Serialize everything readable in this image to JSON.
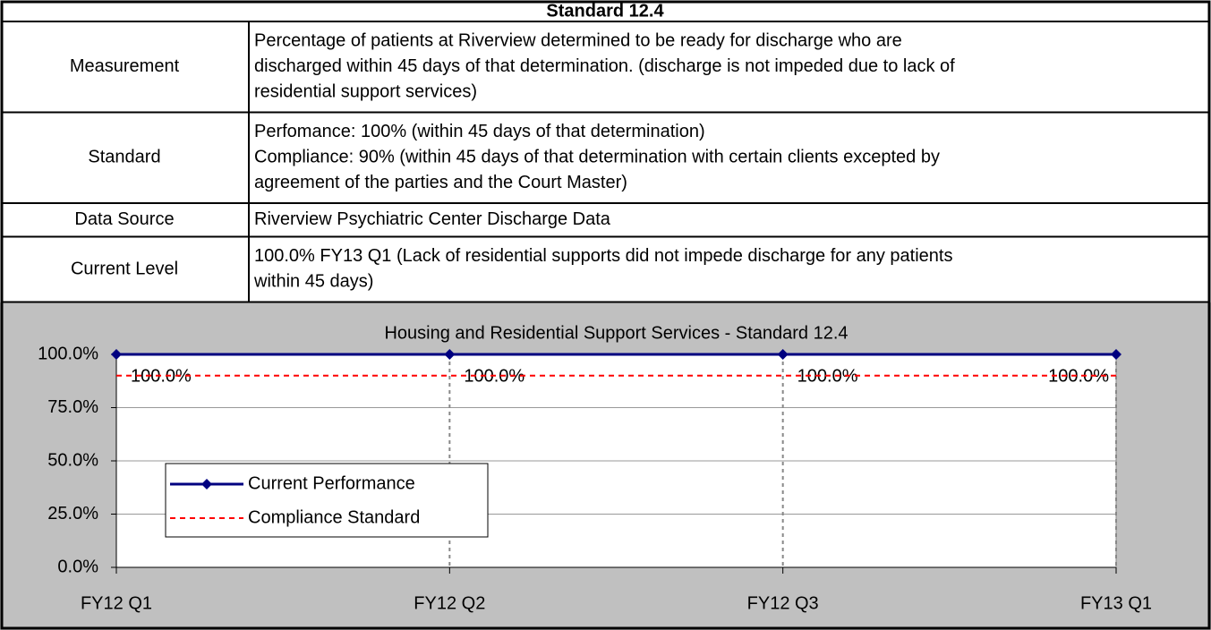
{
  "table": {
    "title": "Standard 12.4",
    "rows": [
      {
        "label": "Measurement",
        "lines": [
          "Percentage of patients at Riverview determined to be ready for discharge who are",
          "discharged within 45 days of that determination. (discharge is not impeded due to lack of",
          "residential support services)"
        ]
      },
      {
        "label": "Standard",
        "lines": [
          "Perfomance: 100% (within 45 days of that determination)",
          "Compliance: 90% (within 45 days of that determination with certain clients excepted by",
          "agreement of the parties and the Court Master)"
        ]
      },
      {
        "label": "Data Source",
        "lines": [
          "Riverview Psychiatric Center Discharge Data"
        ]
      },
      {
        "label": "Current Level",
        "lines": [
          "100.0%  FY13 Q1 (Lack of residential supports did not impede discharge for any patients",
          "within 45 days)"
        ]
      }
    ]
  },
  "chart_data": {
    "type": "line",
    "title": "Housing and Residential Support Services - Standard 12.4",
    "categories": [
      "FY12 Q1",
      "FY12 Q2",
      "FY12 Q3",
      "FY13 Q1"
    ],
    "series": [
      {
        "name": "Current Performance",
        "color": "#000080",
        "values": [
          100,
          100,
          100,
          100
        ],
        "value_labels": [
          "100.0%",
          "100.0%",
          "100.0%",
          "100.0%"
        ],
        "marker": "diamond"
      },
      {
        "name": "Compliance Standard",
        "color": "#ff0000",
        "values": [
          90,
          90,
          90,
          90
        ],
        "dashed": true
      }
    ],
    "ylim": [
      0,
      100
    ],
    "yticks": [
      {
        "value": 0,
        "label": "0.0%"
      },
      {
        "value": 25,
        "label": "25.0%"
      },
      {
        "value": 50,
        "label": "50.0%"
      },
      {
        "value": 75,
        "label": "75.0%"
      },
      {
        "value": 100,
        "label": "100.0%"
      }
    ],
    "grid": true,
    "legend": "lower left"
  }
}
